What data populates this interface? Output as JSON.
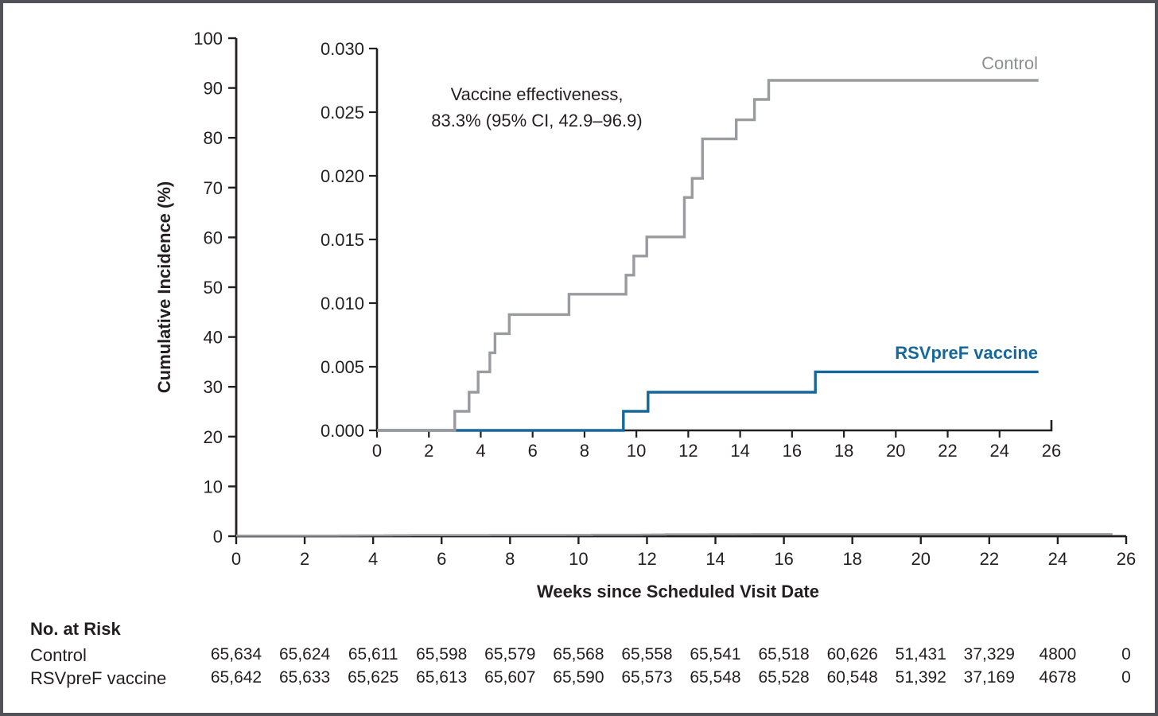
{
  "figure": {
    "annotation": {
      "line1": "Vaccine effectiveness,",
      "line2": "83.3% (95% CI, 42.9–96.9)"
    },
    "series_labels": {
      "control": "Control",
      "vaccine": "RSVpreF vaccine"
    },
    "colors": {
      "control_line": "#999b9e",
      "control_label": "#8d8f92",
      "vaccine": "#15689b",
      "axis": "#231f20",
      "border": "#515257"
    }
  },
  "chart_data": {
    "type": "line",
    "subtype": "step-cumulative-incidence-with-inset",
    "main_axes": {
      "ylabel": "Cumulative Incidence (%)",
      "xlabel": "Weeks since Scheduled Visit Date",
      "ylim": [
        0,
        100
      ],
      "yticks": [
        0,
        10,
        20,
        30,
        40,
        50,
        60,
        70,
        80,
        90,
        100
      ],
      "xlim": [
        0,
        26
      ],
      "xticks": [
        0,
        2,
        4,
        6,
        8,
        10,
        12,
        14,
        16,
        18,
        20,
        22,
        24,
        26
      ],
      "grid": false
    },
    "inset_axes": {
      "ylim": [
        0,
        0.03
      ],
      "ytick_labels": [
        "0.000",
        "0.005",
        "0.010",
        "0.015",
        "0.020",
        "0.025",
        "0.030"
      ],
      "xlim": [
        0,
        26
      ],
      "xticks": [
        0,
        2,
        4,
        6,
        8,
        10,
        12,
        14,
        16,
        18,
        20,
        22,
        24,
        26
      ],
      "grid": false
    },
    "annotation": "Vaccine effectiveness, 83.3% (95% CI, 42.9–96.9)",
    "legend_position": "curve-end-labels",
    "series": [
      {
        "name": "Control",
        "color": "#999b9e",
        "end_week": 25.5,
        "steps": [
          [
            3.0,
            0.0015
          ],
          [
            3.55,
            0.003
          ],
          [
            3.9,
            0.0046
          ],
          [
            4.35,
            0.0061
          ],
          [
            4.55,
            0.0076
          ],
          [
            5.1,
            0.0091
          ],
          [
            7.4,
            0.0107
          ],
          [
            9.6,
            0.0122
          ],
          [
            9.9,
            0.0137
          ],
          [
            10.4,
            0.0152
          ],
          [
            11.85,
            0.0183
          ],
          [
            12.15,
            0.0198
          ],
          [
            12.55,
            0.0229
          ],
          [
            13.85,
            0.0244
          ],
          [
            14.55,
            0.026
          ],
          [
            15.1,
            0.0275
          ]
        ]
      },
      {
        "name": "RSVpreF vaccine",
        "color": "#15689b",
        "end_week": 25.5,
        "steps": [
          [
            9.5,
            0.0015
          ],
          [
            10.45,
            0.003
          ],
          [
            16.9,
            0.0046
          ]
        ]
      }
    ]
  },
  "risk_table": {
    "title": "No. at Risk",
    "weeks": [
      0,
      2,
      4,
      6,
      8,
      10,
      12,
      14,
      16,
      18,
      20,
      22,
      24,
      26
    ],
    "rows": [
      {
        "label": "Control",
        "values": [
          "65,634",
          "65,624",
          "65,611",
          "65,598",
          "65,579",
          "65,568",
          "65,558",
          "65,541",
          "65,518",
          "60,626",
          "51,431",
          "37,329",
          "4800",
          "0"
        ]
      },
      {
        "label": "RSVpreF vaccine",
        "values": [
          "65,642",
          "65,633",
          "65,625",
          "65,613",
          "65,607",
          "65,590",
          "65,573",
          "65,548",
          "65,528",
          "60,548",
          "51,392",
          "37,169",
          "4678",
          "0"
        ]
      }
    ]
  }
}
